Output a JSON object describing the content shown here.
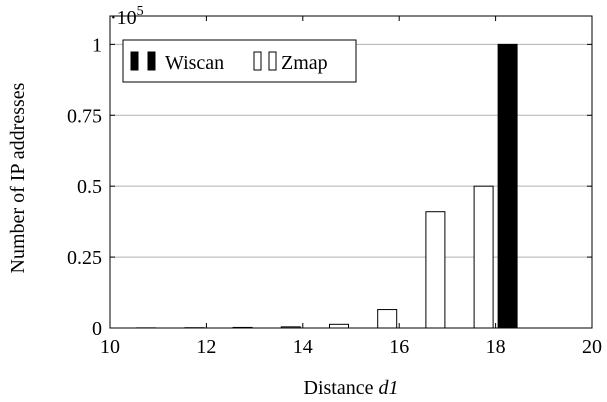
{
  "chart_data": {
    "type": "bar",
    "xlabel": "Distance",
    "xlabel_var": "d1",
    "ylabel": "Number of IP addresses",
    "y_multiplier_base": "·10",
    "y_multiplier_exp": "5",
    "xlim": [
      10,
      20
    ],
    "ylim": [
      0,
      1.1
    ],
    "x_ticks": [
      "10",
      "12",
      "14",
      "16",
      "18",
      "20"
    ],
    "x_tick_values": [
      10,
      12,
      14,
      16,
      18,
      20
    ],
    "y_ticks": [
      "0",
      "0.25",
      "0.5",
      "0.75",
      "1"
    ],
    "y_tick_values": [
      0,
      0.25,
      0.5,
      0.75,
      1
    ],
    "grid": "horizontal",
    "legend": "top-left",
    "x": [
      11,
      12,
      13,
      14,
      15,
      16,
      17,
      18,
      19
    ],
    "series": [
      {
        "name": "Wiscan",
        "fill": "#000000",
        "values": [
          0,
          0,
          0,
          0,
          0,
          0,
          0,
          1.0,
          0
        ]
      },
      {
        "name": "Zmap",
        "fill": "#ffffff",
        "values": [
          0.0005,
          0.001,
          0.002,
          0.004,
          0.013,
          0.065,
          0.41,
          0.5,
          0
        ]
      }
    ]
  }
}
